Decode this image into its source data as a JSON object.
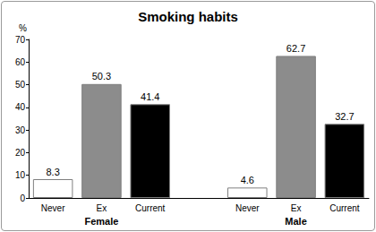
{
  "chart_data": {
    "type": "bar",
    "title": "Smoking habits",
    "ylabel": "%",
    "categories": [
      "Female",
      "Male"
    ],
    "series": [
      {
        "name": "Never",
        "color": "#ffffff",
        "values": [
          8.3,
          4.6
        ]
      },
      {
        "name": "Ex",
        "color": "#8c8c8c",
        "values": [
          50.3,
          62.7
        ]
      },
      {
        "name": "Current",
        "color": "#000000",
        "values": [
          41.4,
          32.7
        ]
      }
    ],
    "ylim": [
      0,
      70
    ],
    "yticks": [
      0,
      10,
      20,
      30,
      40,
      50,
      60,
      70
    ],
    "grid": false,
    "data_labels": true
  }
}
